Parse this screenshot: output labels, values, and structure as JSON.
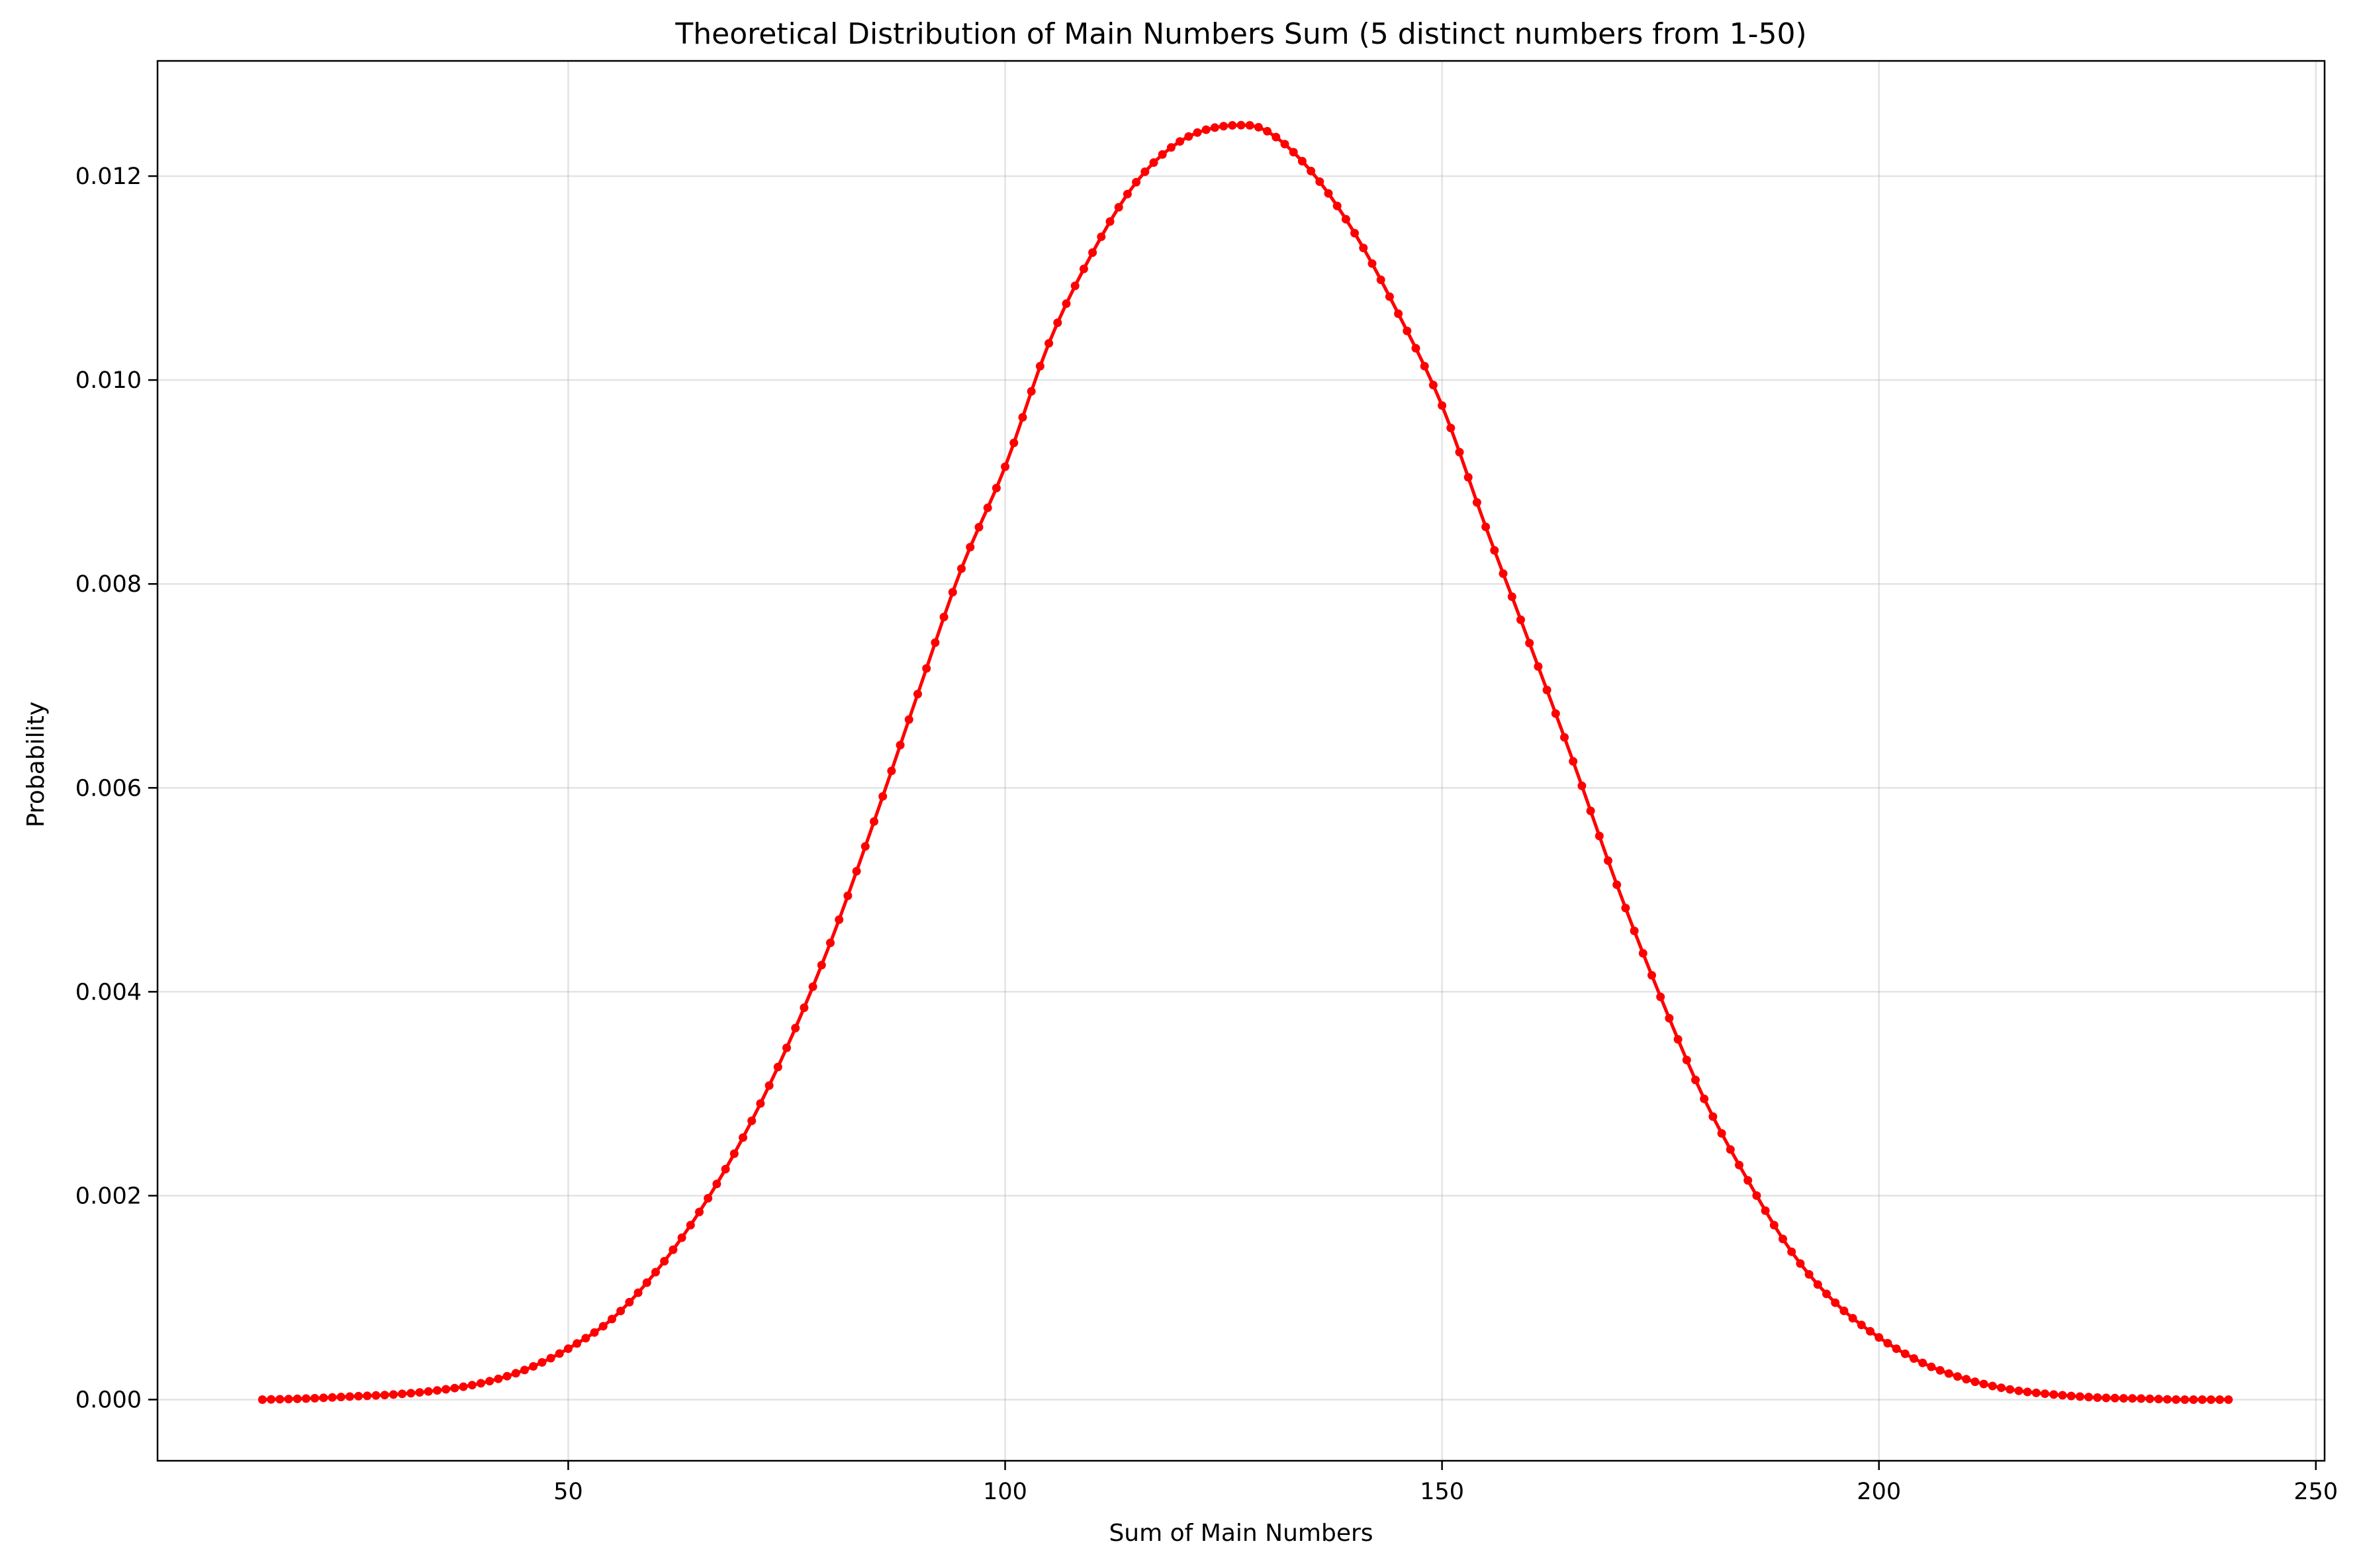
{
  "chart_data": {
    "type": "line",
    "title": "Theoretical Distribution of Main Numbers Sum (5 distinct numbers from 1-50)",
    "xlabel": "Sum of Main Numbers",
    "ylabel": "Probability",
    "xlim": [
      3,
      251
    ],
    "ylim": [
      -0.0006,
      0.01313
    ],
    "xticks": [
      50,
      100,
      150,
      200,
      250
    ],
    "xtick_labels": [
      "50",
      "100",
      "150",
      "200",
      "250"
    ],
    "yticks": [
      0.0,
      0.002,
      0.004,
      0.006,
      0.008,
      0.01,
      0.012
    ],
    "ytick_labels": [
      "0.000",
      "0.002",
      "0.004",
      "0.006",
      "0.008",
      "0.010",
      "0.012"
    ],
    "grid": true,
    "legend": "none",
    "series_color": "#ff0000",
    "x_range": [
      15,
      240
    ],
    "peak": {
      "x": 127.5,
      "y": 0.0125
    },
    "x": [
      15,
      20,
      25,
      30,
      35,
      40,
      45,
      50,
      55,
      60,
      65,
      70,
      75,
      80,
      85,
      90,
      95,
      100,
      105,
      110,
      115,
      120,
      125,
      127.5,
      130,
      135,
      140,
      145,
      150,
      155,
      160,
      165,
      170,
      175,
      180,
      185,
      190,
      195,
      200,
      205,
      210,
      215,
      220,
      225,
      230,
      235,
      240
    ],
    "y": [
      0.0,
      1e-05,
      3e-05,
      5e-05,
      9e-05,
      0.00016,
      0.00029,
      0.0005,
      0.00079,
      0.00125,
      0.00184,
      0.00257,
      0.00345,
      0.00448,
      0.00567,
      0.00692,
      0.00815,
      0.00915,
      0.01036,
      0.01125,
      0.01194,
      0.01234,
      0.01249,
      0.0125,
      0.01244,
      0.01205,
      0.01144,
      0.01065,
      0.00975,
      0.00856,
      0.00742,
      0.00626,
      0.00505,
      0.00395,
      0.00295,
      0.00215,
      0.00145,
      0.00095,
      0.00061,
      0.00036,
      0.0002,
      0.0001,
      5e-05,
      2e-05,
      1e-05,
      0.0,
      0.0
    ]
  }
}
